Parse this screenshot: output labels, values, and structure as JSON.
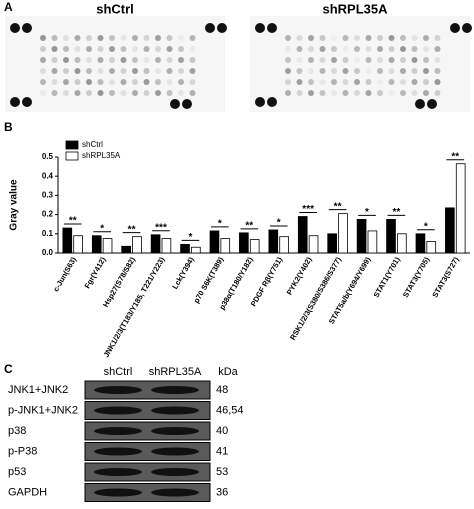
{
  "panel_a": {
    "label": "A",
    "titles": [
      "shCtrl",
      "shRPL35A"
    ]
  },
  "chart_data": {
    "type": "bar",
    "panel_label": "B",
    "y_label": "Gray value",
    "categories": [
      "c-Jun(S63)",
      "Fgr(Y412)",
      "Hsp27(S78/S82)",
      "JNK1/2/3(T183/Y185, T221/Y223)",
      "Lck(Y394)",
      "p70 S6K(T389)",
      "p38α(T180/Y182)",
      "PDGF Rβ(Y751)",
      "PYK2(Y402)",
      "RSK1/2/3(S380/S386/S377)",
      "STAT5a/b(Y694/Y699)",
      "STAT1(Y701)",
      "STAT3(Y705)",
      "STAT3(S727)"
    ],
    "series": [
      {
        "name": "shCtrl",
        "color": "#000000",
        "values": [
          0.13,
          0.09,
          0.035,
          0.095,
          0.045,
          0.115,
          0.105,
          0.12,
          0.19,
          0.1,
          0.175,
          0.175,
          0.1,
          0.235
        ]
      },
      {
        "name": "shRPL35A",
        "color": "#ffffff",
        "values": [
          0.09,
          0.075,
          0.085,
          0.075,
          0.03,
          0.075,
          0.07,
          0.085,
          0.09,
          0.205,
          0.115,
          0.1,
          0.06,
          0.465
        ]
      }
    ],
    "significance": [
      "**",
      "*",
      "**",
      "***",
      "*",
      "*",
      "**",
      "*",
      "***",
      "**",
      "*",
      "**",
      "*",
      "**"
    ],
    "ylim": [
      0,
      0.5
    ],
    "yticks": [
      {
        "value": 0,
        "label": "0.0"
      },
      0.1,
      0.2,
      0.3,
      0.4,
      0.5
    ],
    "legend": "top-left"
  },
  "panel_c": {
    "label": "C",
    "columns": [
      "shCtrl",
      "shRPL35A"
    ],
    "unit": "kDa",
    "rows": [
      {
        "name": "JNK1+JNK2",
        "kda": 48
      },
      {
        "name": "p-JNK1+JNK2",
        "kda": "46,54"
      },
      {
        "name": "p38",
        "kda": 40
      },
      {
        "name": "p-P38",
        "kda": 41
      },
      {
        "name": "p53",
        "kda": 53
      },
      {
        "name": "GAPDH",
        "kda": 36
      }
    ]
  }
}
